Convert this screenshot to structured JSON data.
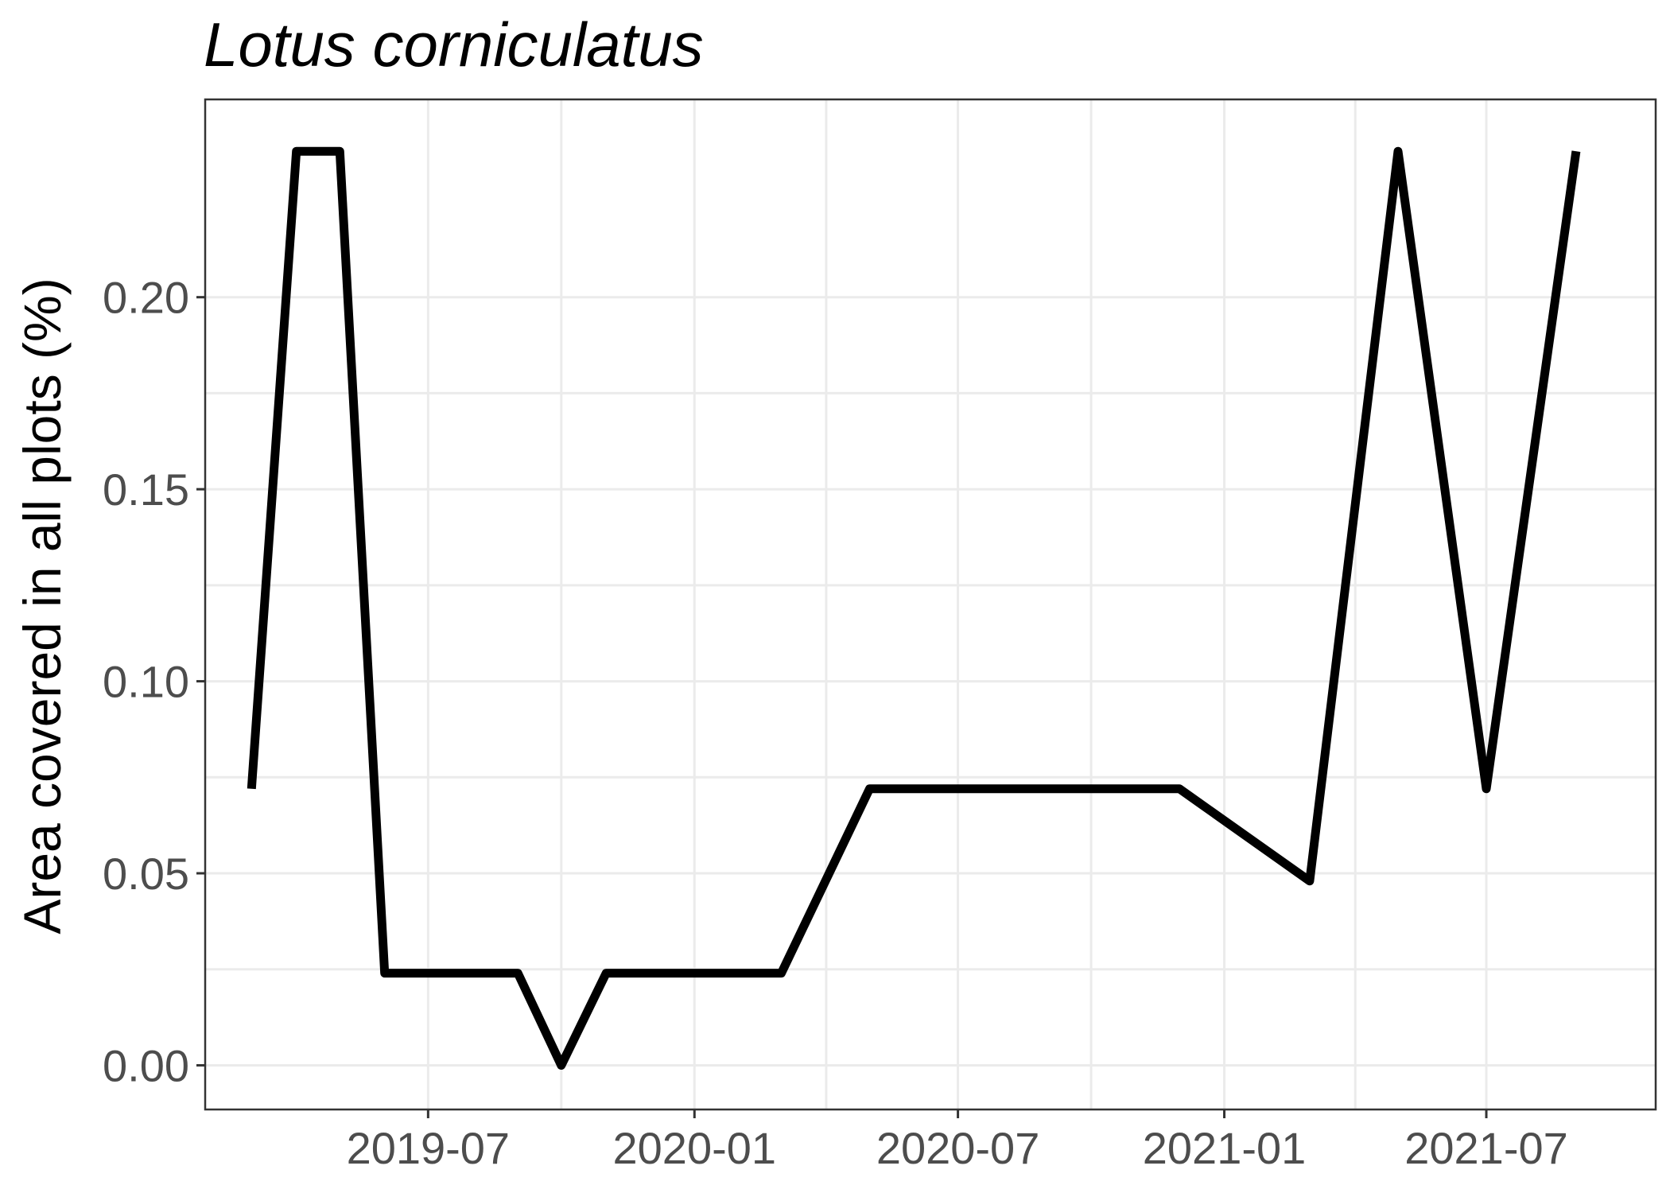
{
  "chart_data": {
    "type": "line",
    "title": "Lotus corniculatus",
    "xlabel": "",
    "ylabel": "Area covered in all plots (%)",
    "x_type": "date",
    "xlim": [
      "2019-01-28",
      "2021-10-26"
    ],
    "ylim": [
      -0.0115,
      0.2515
    ],
    "x_ticks": [
      "2019-07-01",
      "2020-01-01",
      "2020-07-01",
      "2021-01-01",
      "2021-07-01"
    ],
    "x_tick_labels": [
      "2019-07",
      "2020-01",
      "2020-07",
      "2021-01",
      "2021-07"
    ],
    "y_ticks": [
      0.0,
      0.05,
      0.1,
      0.15,
      0.2
    ],
    "y_tick_labels": [
      "0.00",
      "0.05",
      "0.10",
      "0.15",
      "0.20"
    ],
    "grid": true,
    "series": [
      {
        "color": "#000000",
        "x": [
          "2019-03-01",
          "2019-04-01",
          "2019-05-01",
          "2019-06-01",
          "2019-09-01",
          "2019-10-01",
          "2019-11-01",
          "2020-03-01",
          "2020-05-01",
          "2020-12-01",
          "2021-03-01",
          "2021-05-01",
          "2021-07-01",
          "2021-09-01"
        ],
        "y": [
          0.072,
          0.238,
          0.238,
          0.024,
          0.024,
          0.0,
          0.024,
          0.024,
          0.072,
          0.072,
          0.048,
          0.238,
          0.072,
          0.238
        ]
      }
    ]
  }
}
